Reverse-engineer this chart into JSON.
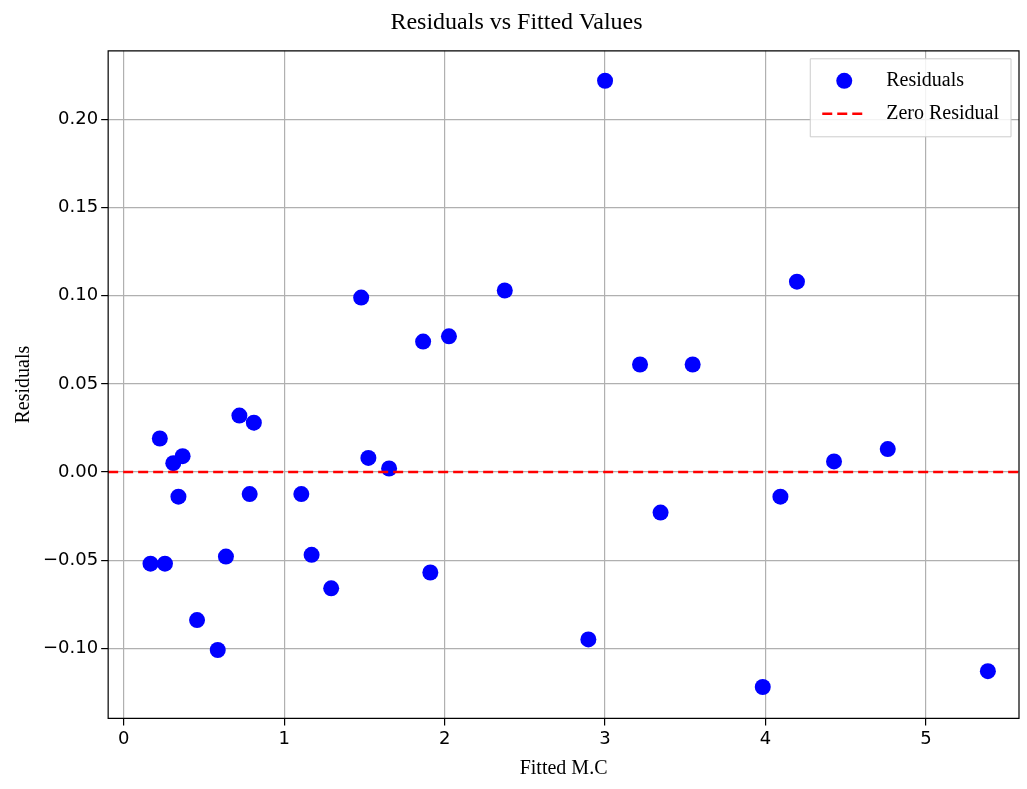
{
  "chart_data": {
    "type": "scatter",
    "title": "Residuals vs Fitted Values",
    "xlabel": "Fitted M.C",
    "ylabel": "Residuals",
    "xlim": [
      -0.097,
      5.58
    ],
    "ylim": [
      -0.1398,
      0.239
    ],
    "xticks": [
      0,
      1,
      2,
      3,
      4,
      5
    ],
    "yticks": [
      {
        "value": -0.1,
        "label": "−0.10"
      },
      {
        "value": -0.05,
        "label": "−0.05"
      },
      {
        "value": 0,
        "label": "0.00"
      },
      {
        "value": 0.05,
        "label": "0.05"
      },
      {
        "value": 0.1,
        "label": "0.10"
      },
      {
        "value": 0.15,
        "label": "0.15"
      },
      {
        "value": 0.2,
        "label": "0.20"
      }
    ],
    "grid": true,
    "legend": "top right",
    "marker": "circle",
    "series": [
      {
        "name": "Residuals",
        "color": "#0000ff",
        "x": [
          0.167,
          0.225,
          0.257,
          0.309,
          0.341,
          0.367,
          0.457,
          0.586,
          0.637,
          0.721,
          0.785,
          0.811,
          1.107,
          1.171,
          1.293,
          1.48,
          1.525,
          1.654,
          1.866,
          1.911,
          2.027,
          2.375,
          2.896,
          3.0,
          3.218,
          3.346,
          3.546,
          3.983,
          4.093,
          4.196,
          4.427,
          4.762,
          5.386
        ],
        "values": [
          -0.052,
          0.019,
          -0.052,
          0.005,
          -0.014,
          0.009,
          -0.084,
          -0.101,
          -0.048,
          0.032,
          -0.0125,
          0.028,
          -0.0125,
          -0.047,
          -0.066,
          0.099,
          0.008,
          0.002,
          0.074,
          -0.057,
          0.077,
          0.103,
          -0.095,
          0.222,
          0.061,
          -0.023,
          0.061,
          -0.122,
          -0.014,
          0.108,
          0.006,
          0.013,
          -0.113
        ]
      }
    ],
    "ref_lines": [
      {
        "axis": "y",
        "value": 0,
        "label": "Zero Residual",
        "color": "#ff0000",
        "line_style": "dashed"
      }
    ]
  }
}
